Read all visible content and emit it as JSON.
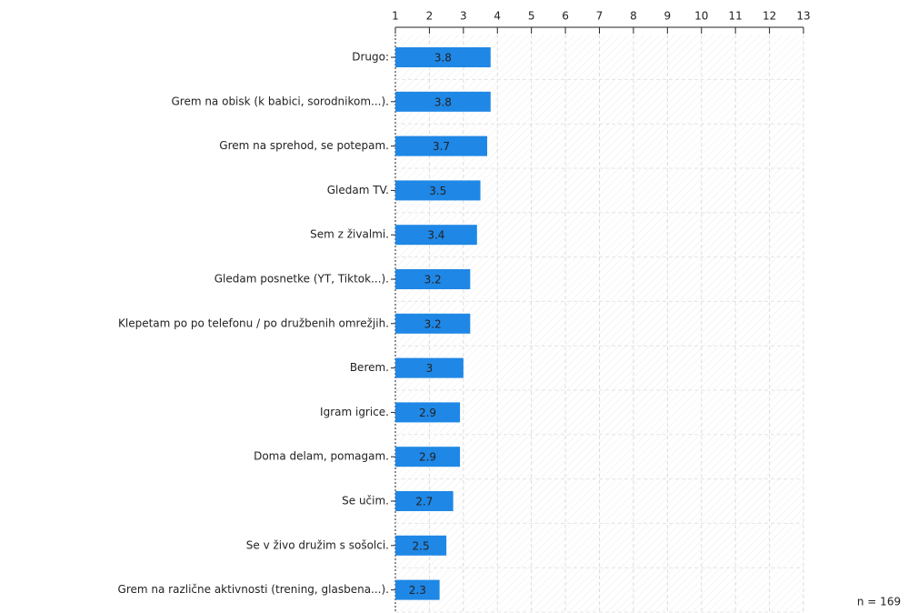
{
  "chart_data": {
    "type": "bar",
    "orientation": "horizontal",
    "categories": [
      "Drugo:",
      "Grem na obisk (k babici, sorodnikom...).",
      "Grem na sprehod, se potepam.",
      "Gledam TV.",
      "Sem z živalmi.",
      "Gledam posnetke (YT, Tiktok...).",
      "Klepetam po po telefonu / po družbenih omrežjih.",
      "Berem.",
      "Igram igrice.",
      "Doma delam, pomagam.",
      "Se učim.",
      "Se v živo družim s sošolci.",
      "Grem na različne aktivnosti (trening, glasbena...)."
    ],
    "values": [
      3.8,
      3.8,
      3.7,
      3.5,
      3.4,
      3.2,
      3.2,
      3,
      2.9,
      2.9,
      2.7,
      2.5,
      2.3
    ],
    "color": "#1f87e5",
    "xlim": [
      1,
      13
    ],
    "xticks": [
      1,
      2,
      3,
      4,
      5,
      6,
      7,
      8,
      9,
      10,
      11,
      12,
      13
    ],
    "grid": true,
    "annotation": "n = 169"
  }
}
